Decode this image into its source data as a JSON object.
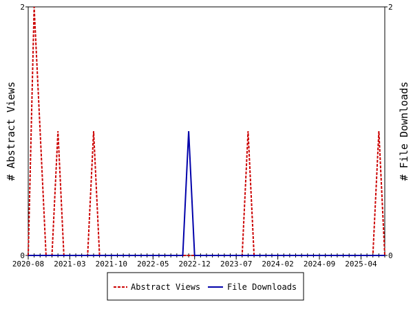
{
  "chart_data": {
    "type": "line",
    "x_tick_labels": [
      "2020-08",
      "2021-03",
      "2021-10",
      "2022-05",
      "2022-12",
      "2023-07",
      "2024-02",
      "2024-09",
      "2025-04"
    ],
    "x_range": [
      "2020-08",
      "2025-08"
    ],
    "y_left": {
      "label": "# Abstract Views",
      "range": [
        0,
        2
      ],
      "ticks": [
        "0",
        "2"
      ]
    },
    "y_right": {
      "label": "# File Downloads",
      "range": [
        0,
        2
      ],
      "ticks": [
        "0",
        "2"
      ]
    },
    "grid": false,
    "legend_position": "bottom",
    "series": [
      {
        "name": "Abstract Views",
        "axis": "left",
        "color": "#cc0000",
        "style": "dashed",
        "x": [
          "2020-08",
          "2020-09",
          "2020-10",
          "2020-11",
          "2020-12",
          "2021-01",
          "2021-02",
          "2021-03",
          "2021-04",
          "2021-05",
          "2021-06",
          "2021-07",
          "2021-08",
          "2021-09",
          "2021-10",
          "2023-07",
          "2023-08",
          "2023-09",
          "2023-10",
          "2023-11",
          "2025-05",
          "2025-06",
          "2025-07",
          "2025-08"
        ],
        "y": [
          0,
          2,
          1,
          0,
          0,
          1,
          0,
          0,
          0,
          0,
          0,
          1,
          0,
          0,
          0,
          0,
          0,
          1,
          0,
          0,
          0,
          0,
          1,
          0
        ]
      },
      {
        "name": "File Downloads",
        "axis": "right",
        "color": "#0000aa",
        "style": "solid",
        "x": [
          "2020-08",
          "2022-10",
          "2022-11",
          "2022-12",
          "2025-08"
        ],
        "y": [
          0,
          0,
          1,
          0,
          0
        ]
      }
    ]
  }
}
